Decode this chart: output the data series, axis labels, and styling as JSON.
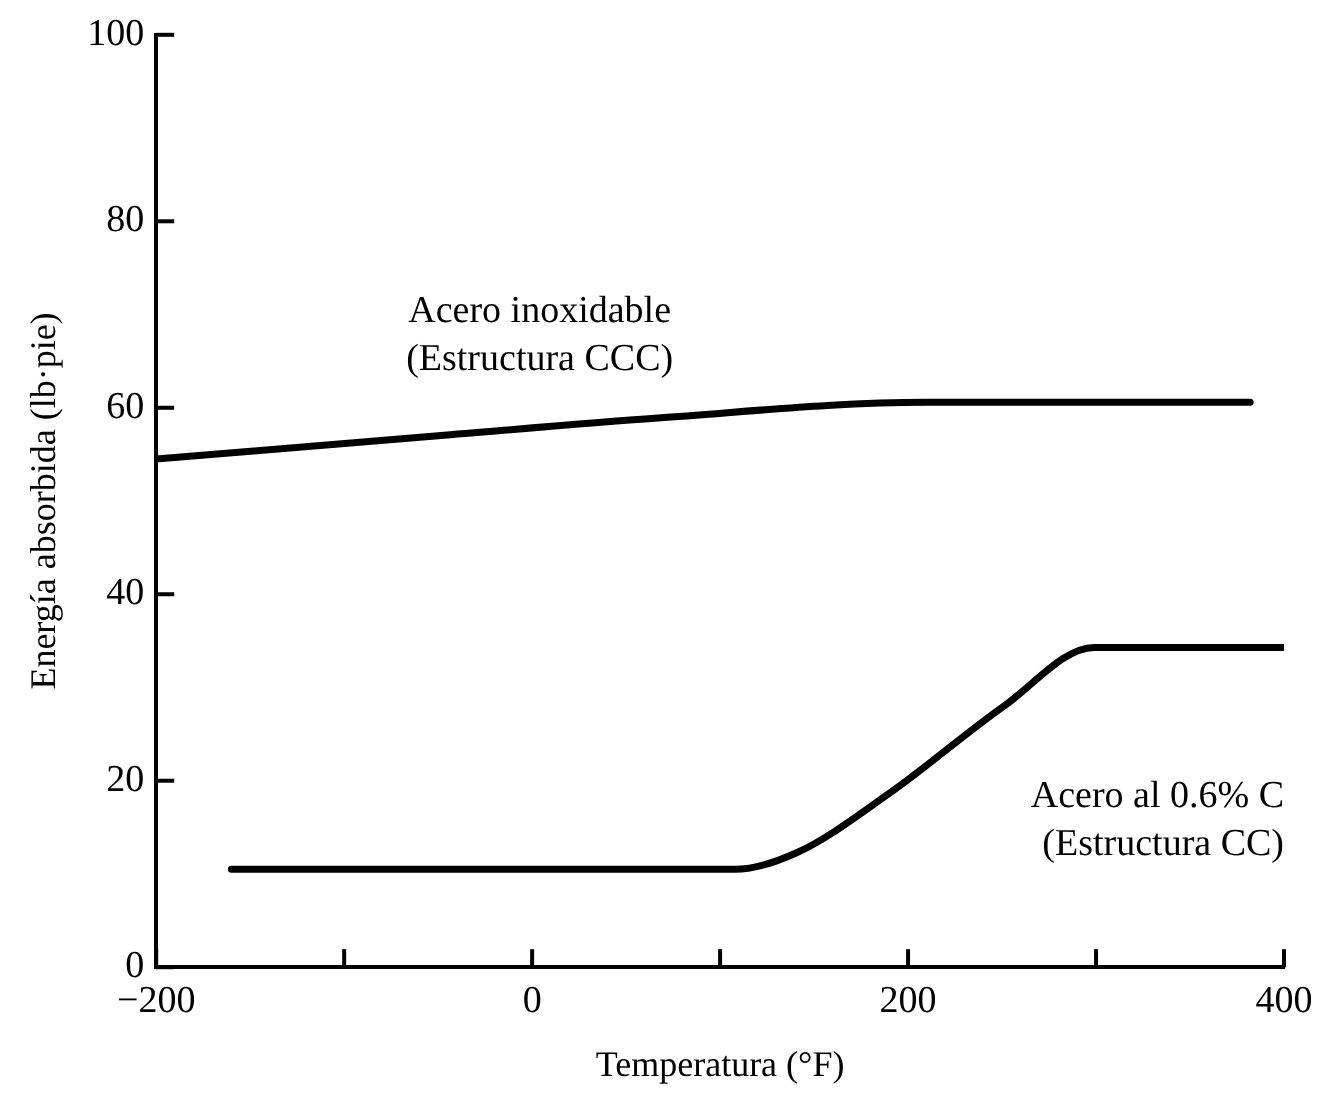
{
  "chart_data": {
    "type": "line",
    "xlabel": "Temperatura (°F)",
    "ylabel": "Energía absorbida (lb·pie)",
    "xlim": [
      -200,
      400
    ],
    "xticks": [
      -200,
      {
        "value": -100,
        "label": null
      },
      0,
      {
        "value": 100,
        "label": null
      },
      200,
      {
        "value": 300,
        "label": null
      },
      400
    ],
    "ylim": [
      0,
      100
    ],
    "yticks": [
      0,
      20,
      40,
      60,
      80,
      100
    ],
    "grid": false,
    "legend": false,
    "marker": "none",
    "line_style": "solid",
    "series": [
      {
        "name": "Acero inoxidable\n(Estructura CCC)",
        "color": "#000000",
        "x": [
          -200,
          -50,
          67,
          210,
          382
        ],
        "values": [
          54.5,
          57,
          58.9,
          60.6,
          60.6
        ]
      },
      {
        "name": "Acero al 0.6% C\n(Estructura CC)",
        "color": "#000000",
        "x": [
          -160,
          108,
          141,
          189,
          251,
          299,
          400
        ],
        "values": [
          10.5,
          10.5,
          12.3,
          18.5,
          28,
          34.3,
          34.3
        ]
      }
    ]
  }
}
